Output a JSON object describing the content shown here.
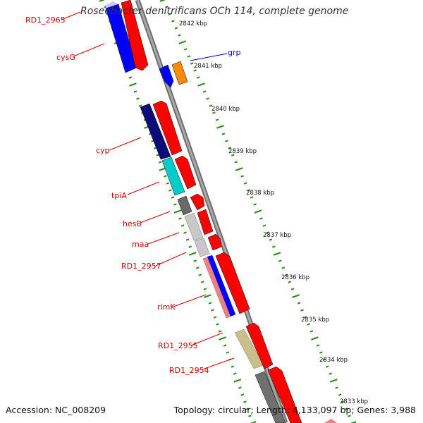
{
  "map": {
    "title": "Roseobacter denitrificans OCh 114, complete genome",
    "accession": "Accession: NC_008209",
    "summary": "Topology: circular; Length: 4,133,097 bp; Genes: 3,988"
  },
  "scale": {
    "ticks": [
      "2842 kbp",
      "2841 kbp",
      "2840 kbp",
      "2839 kbp",
      "2838 kbp",
      "2837 kbp",
      "2836 kbp",
      "2835 kbp",
      "2834 kbp",
      "2833 kbp"
    ]
  },
  "genes": {
    "labels": [
      "RD1_2965",
      "cysG",
      "grp",
      "cyp",
      "tpiA",
      "hesB",
      "maa",
      "RD1_2957",
      "rimK",
      "RD1_2955",
      "RD1_2954"
    ]
  },
  "colors": {
    "label": "#cc0000",
    "grp_label": "#0000cc",
    "tick": "#2a8a1a",
    "backbone": "#8a8a8a",
    "red": "#ff0000",
    "blue": "#0000ff",
    "navy": "#0b0b7a",
    "cyan": "#00cccc",
    "orange": "#ff8c00",
    "khaki": "#c8c088"
  }
}
